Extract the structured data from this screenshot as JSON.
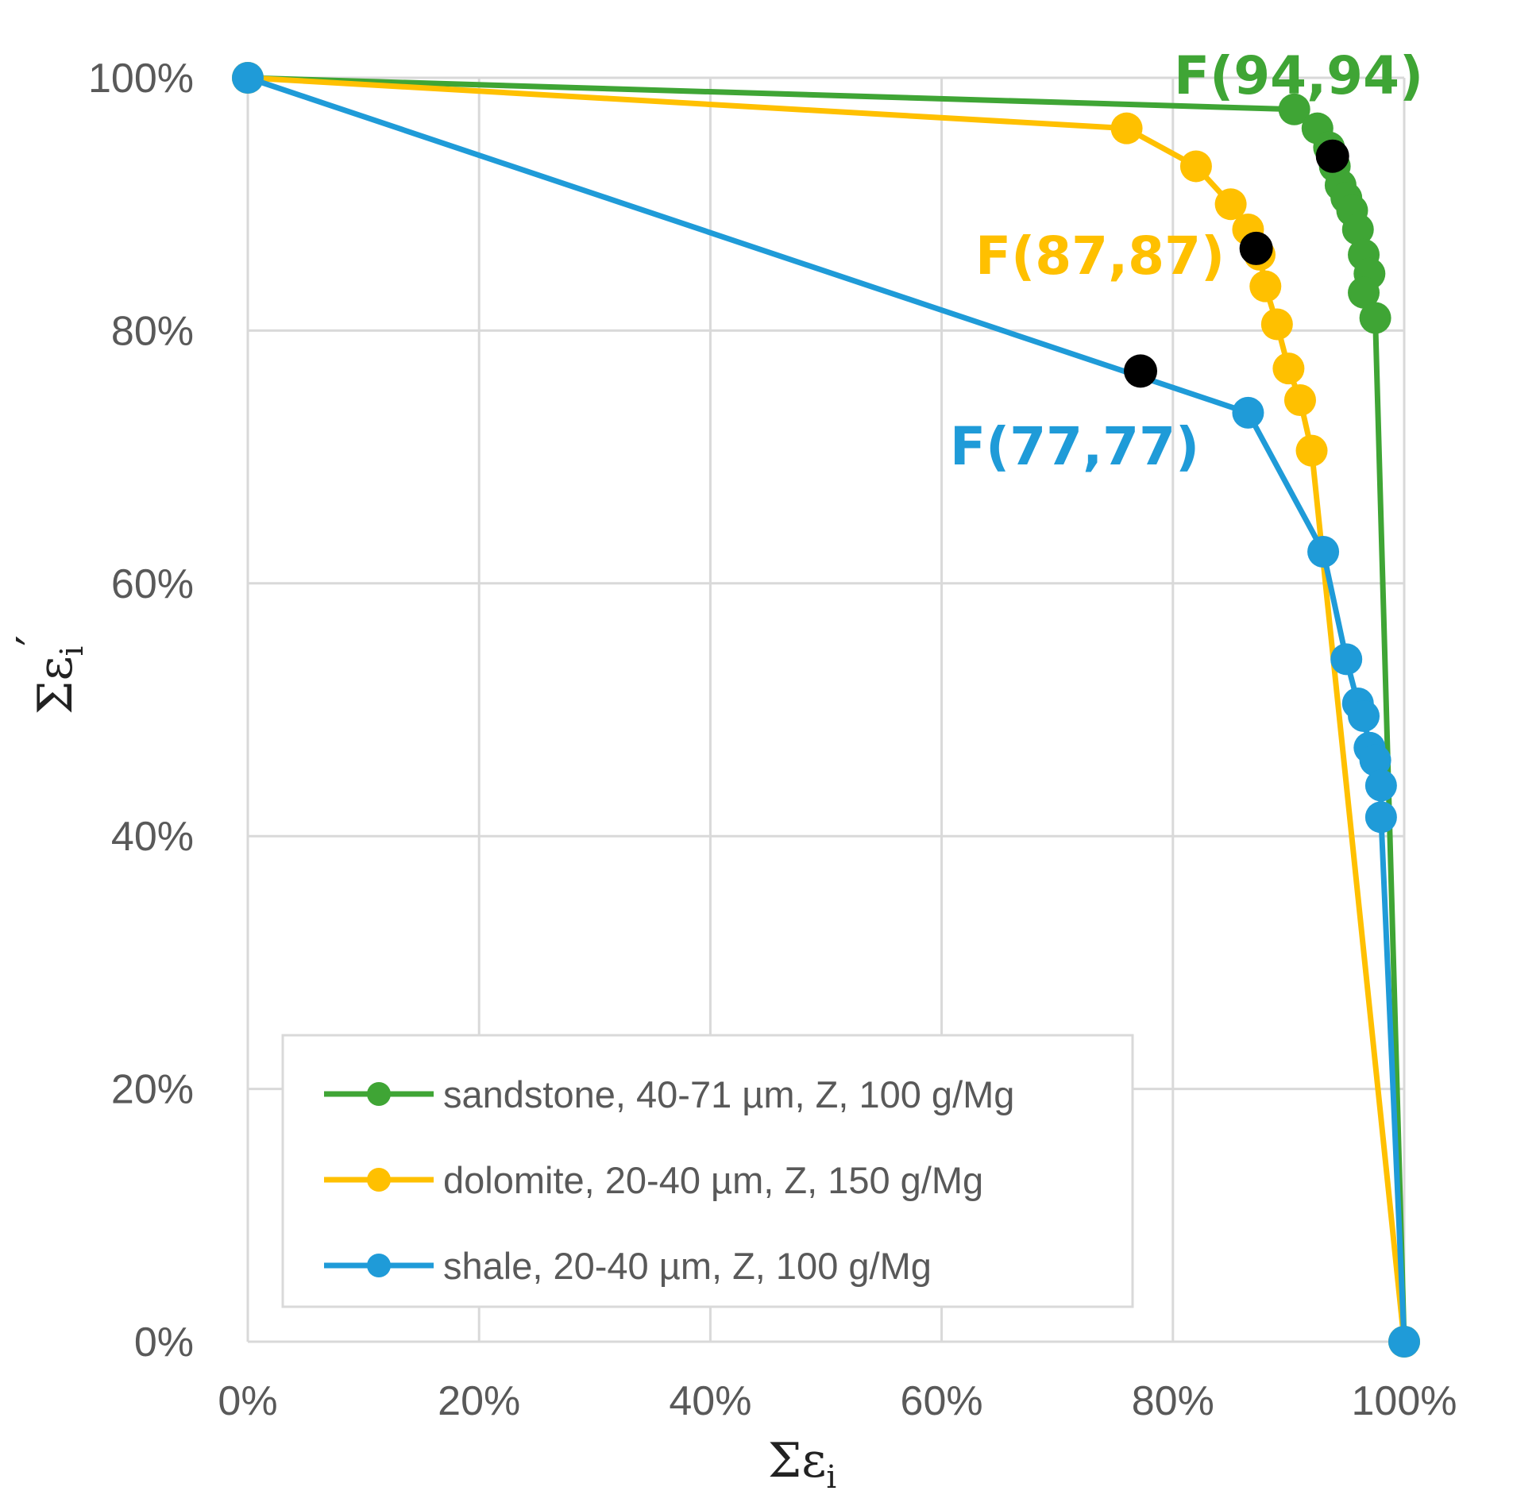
{
  "chart_data": {
    "type": "line",
    "xlabel": "Σε",
    "xlabel_sub": "i",
    "ylabel": "Σε",
    "ylabel_sub": "i",
    "ylabel_prime": "′",
    "xlim": [
      0,
      100
    ],
    "ylim": [
      0,
      100
    ],
    "x_ticks": [
      0,
      20,
      40,
      60,
      80,
      100
    ],
    "y_ticks": [
      0,
      20,
      40,
      60,
      80,
      100
    ],
    "x_tick_labels": [
      "0%",
      "20%",
      "40%",
      "60%",
      "80%",
      "100%"
    ],
    "y_tick_labels": [
      "0%",
      "20%",
      "40%",
      "60%",
      "80%",
      "100%"
    ],
    "grid": true,
    "legend_position": "bottom-left",
    "series": [
      {
        "name": "sandstone, 40-71 µm, Z, 100 g/Mg",
        "color": "#3fa535",
        "points": [
          [
            0,
            100
          ],
          [
            90.5,
            97.5
          ],
          [
            92.5,
            96
          ],
          [
            93.5,
            94.5
          ],
          [
            94,
            93
          ],
          [
            94.5,
            91.5
          ],
          [
            95,
            90.5
          ],
          [
            95.5,
            89.5
          ],
          [
            96,
            88
          ],
          [
            96.5,
            86
          ],
          [
            97,
            84.5
          ],
          [
            96.5,
            83
          ],
          [
            97.5,
            81
          ],
          [
            100,
            0
          ]
        ]
      },
      {
        "name": "dolomite, 20-40 µm, Z, 150 g/Mg",
        "color": "#ffc000",
        "points": [
          [
            0,
            100
          ],
          [
            76,
            96
          ],
          [
            82,
            93
          ],
          [
            85,
            90
          ],
          [
            86.5,
            88
          ],
          [
            87.5,
            86
          ],
          [
            88,
            83.5
          ],
          [
            89,
            80.5
          ],
          [
            90,
            77
          ],
          [
            91,
            74.5
          ],
          [
            92,
            70.5
          ],
          [
            100,
            0
          ]
        ]
      },
      {
        "name": "shale, 20-40 µm, Z, 100 g/Mg",
        "color": "#1f9bd8",
        "points": [
          [
            0,
            100
          ],
          [
            86.5,
            73.5
          ],
          [
            93,
            62.5
          ],
          [
            95,
            54
          ],
          [
            96,
            50.5
          ],
          [
            96.5,
            49.5
          ],
          [
            97,
            47
          ],
          [
            97.5,
            46
          ],
          [
            98,
            44
          ],
          [
            98,
            41.5
          ],
          [
            100,
            0
          ]
        ]
      }
    ],
    "highlight_points": [
      {
        "series": "sandstone, 40-71 µm, Z, 100 g/Mg",
        "x": 93.8,
        "y": 93.8,
        "label": "F(94,94)"
      },
      {
        "series": "dolomite, 20-40 µm, Z, 150 g/Mg",
        "x": 87.2,
        "y": 86.5,
        "label": "F(87,87)"
      },
      {
        "series": "shale, 20-40 µm, Z, 100 g/Mg",
        "x": 77.2,
        "y": 76.8,
        "label": "F(77,77)"
      }
    ],
    "highlight_color": "#000000"
  }
}
